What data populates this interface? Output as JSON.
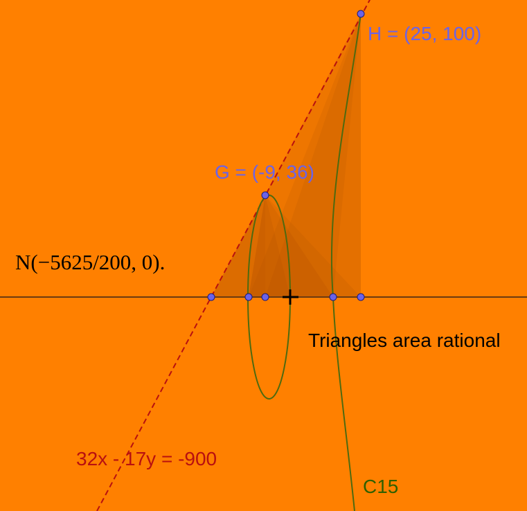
{
  "colors": {
    "background": "#ff8000",
    "axis": "#6b3a10",
    "line": "#b81010",
    "curve": "#4d6a10",
    "point_fill": "#6b63e8",
    "point_stroke": "#1c1a7a",
    "shade": "#a04800",
    "label_blue": "#6b63e8",
    "label_red": "#b81010",
    "label_green": "#2f6000"
  },
  "points": {
    "G": "G = (-9, 36)",
    "H": "H = (25, 100)"
  },
  "line_label": "32x - 17y = -900",
  "curve_label": "C15",
  "note": "Triangles area rational",
  "math_label": "N(−5625/200, 0)."
}
